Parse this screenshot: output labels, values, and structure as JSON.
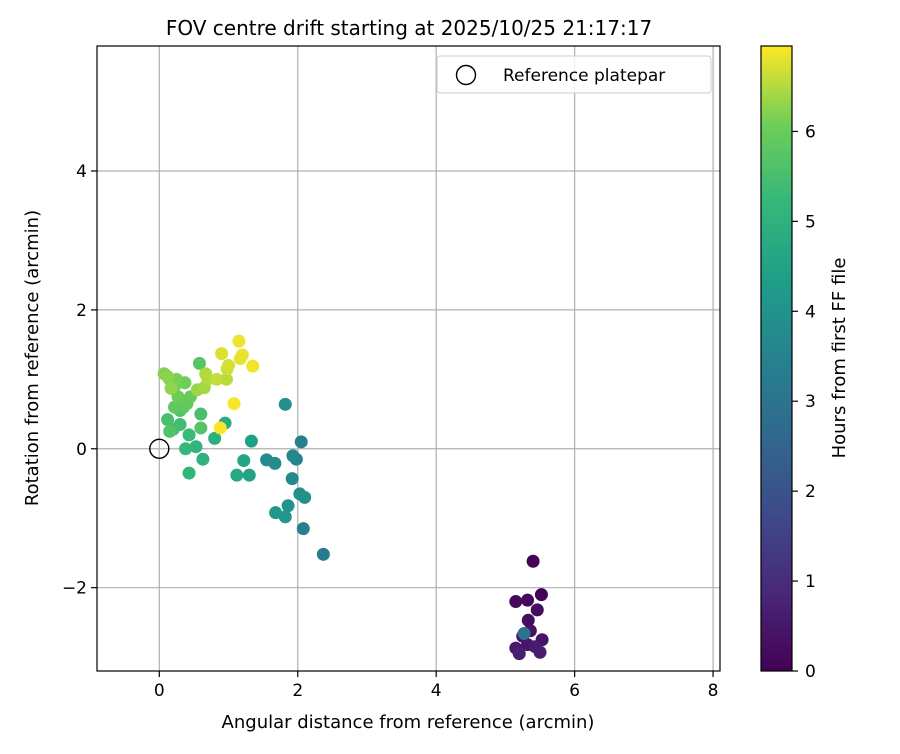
{
  "chart_data": {
    "type": "scatter",
    "title": "FOV centre drift starting at 2025/10/25 21:17:17",
    "xlabel": "Angular distance from reference (arcmin)",
    "ylabel": "Rotation from reference (arcmin)",
    "xlim": [
      -0.9,
      8.1
    ],
    "ylim": [
      -3.2,
      5.8
    ],
    "xticks": [
      0,
      2,
      4,
      6,
      8
    ],
    "yticks": [
      -2,
      0,
      2,
      4
    ],
    "grid": true,
    "legend": {
      "placement": "top-right",
      "entries": [
        "Reference platepar"
      ]
    },
    "reference_point": {
      "x": 0,
      "y": 0
    },
    "colorbar": {
      "label": "Hours from first FF file",
      "colormap": "viridis",
      "range": [
        0,
        6.95
      ],
      "ticks": [
        0,
        1,
        2,
        3,
        4,
        5,
        6
      ]
    },
    "points": [
      {
        "x": 5.4,
        "y": -1.62,
        "h": 0.05
      },
      {
        "x": 5.52,
        "y": -2.1,
        "h": 0.1
      },
      {
        "x": 5.32,
        "y": -2.18,
        "h": 0.15
      },
      {
        "x": 5.15,
        "y": -2.2,
        "h": 0.2
      },
      {
        "x": 5.46,
        "y": -2.32,
        "h": 0.25
      },
      {
        "x": 5.33,
        "y": -2.47,
        "h": 0.3
      },
      {
        "x": 5.36,
        "y": -2.62,
        "h": 0.35
      },
      {
        "x": 5.25,
        "y": -2.7,
        "h": 0.4
      },
      {
        "x": 5.53,
        "y": -2.75,
        "h": 0.45
      },
      {
        "x": 5.32,
        "y": -2.82,
        "h": 0.5
      },
      {
        "x": 5.15,
        "y": -2.87,
        "h": 0.55
      },
      {
        "x": 5.43,
        "y": -2.85,
        "h": 0.6
      },
      {
        "x": 5.5,
        "y": -2.93,
        "h": 0.65
      },
      {
        "x": 5.2,
        "y": -2.95,
        "h": 0.7
      },
      {
        "x": 5.27,
        "y": -2.66,
        "h": 3.0
      },
      {
        "x": 2.37,
        "y": -1.52,
        "h": 3.2
      },
      {
        "x": 2.08,
        "y": -1.15,
        "h": 3.35
      },
      {
        "x": 2.05,
        "y": 0.1,
        "h": 3.45
      },
      {
        "x": 1.98,
        "y": -0.15,
        "h": 3.55
      },
      {
        "x": 1.93,
        "y": -0.1,
        "h": 3.6
      },
      {
        "x": 1.92,
        "y": -0.43,
        "h": 3.7
      },
      {
        "x": 1.67,
        "y": -0.21,
        "h": 3.75
      },
      {
        "x": 1.55,
        "y": -0.16,
        "h": 3.8
      },
      {
        "x": 1.82,
        "y": 0.64,
        "h": 3.85
      },
      {
        "x": 2.1,
        "y": -0.7,
        "h": 3.9
      },
      {
        "x": 2.03,
        "y": -0.65,
        "h": 3.95
      },
      {
        "x": 1.86,
        "y": -0.82,
        "h": 4.0
      },
      {
        "x": 1.82,
        "y": -0.98,
        "h": 4.1
      },
      {
        "x": 1.68,
        "y": -0.92,
        "h": 4.2
      },
      {
        "x": 1.33,
        "y": 0.11,
        "h": 4.4
      },
      {
        "x": 1.3,
        "y": -0.38,
        "h": 4.5
      },
      {
        "x": 1.22,
        "y": -0.17,
        "h": 4.6
      },
      {
        "x": 1.12,
        "y": -0.38,
        "h": 4.7
      },
      {
        "x": 0.95,
        "y": 0.37,
        "h": 4.8
      },
      {
        "x": 0.8,
        "y": 0.15,
        "h": 4.9
      },
      {
        "x": 0.63,
        "y": -0.15,
        "h": 5.0
      },
      {
        "x": 0.53,
        "y": 0.03,
        "h": 5.1
      },
      {
        "x": 0.43,
        "y": -0.35,
        "h": 5.15
      },
      {
        "x": 0.38,
        "y": 0.0,
        "h": 5.2
      },
      {
        "x": 0.43,
        "y": 0.2,
        "h": 5.3
      },
      {
        "x": 0.3,
        "y": 0.35,
        "h": 5.4
      },
      {
        "x": 0.2,
        "y": 0.28,
        "h": 5.45
      },
      {
        "x": 0.12,
        "y": 0.42,
        "h": 5.5
      },
      {
        "x": 0.6,
        "y": 0.5,
        "h": 5.55
      },
      {
        "x": 0.3,
        "y": 0.55,
        "h": 5.6
      },
      {
        "x": 0.15,
        "y": 0.25,
        "h": 5.65
      },
      {
        "x": 0.6,
        "y": 0.3,
        "h": 5.7
      },
      {
        "x": 0.58,
        "y": 1.23,
        "h": 5.75
      },
      {
        "x": 0.35,
        "y": 0.6,
        "h": 5.8
      },
      {
        "x": 0.22,
        "y": 0.6,
        "h": 5.85
      },
      {
        "x": 0.4,
        "y": 0.65,
        "h": 5.9
      },
      {
        "x": 0.45,
        "y": 0.75,
        "h": 5.95
      },
      {
        "x": 0.27,
        "y": 0.75,
        "h": 6.0
      },
      {
        "x": 0.37,
        "y": 0.95,
        "h": 6.05
      },
      {
        "x": 0.22,
        "y": 0.9,
        "h": 6.1
      },
      {
        "x": 0.15,
        "y": 1.0,
        "h": 6.1
      },
      {
        "x": 0.25,
        "y": 1.0,
        "h": 6.15
      },
      {
        "x": 0.07,
        "y": 1.08,
        "h": 6.2
      },
      {
        "x": 0.12,
        "y": 1.04,
        "h": 6.25
      },
      {
        "x": 0.17,
        "y": 0.87,
        "h": 6.3
      },
      {
        "x": 0.55,
        "y": 0.85,
        "h": 6.35
      },
      {
        "x": 0.65,
        "y": 0.88,
        "h": 6.4
      },
      {
        "x": 0.67,
        "y": 1.08,
        "h": 6.45
      },
      {
        "x": 0.7,
        "y": 1.0,
        "h": 6.5
      },
      {
        "x": 0.97,
        "y": 1.0,
        "h": 6.55
      },
      {
        "x": 0.83,
        "y": 1.0,
        "h": 6.6
      },
      {
        "x": 0.98,
        "y": 1.15,
        "h": 6.65
      },
      {
        "x": 1.0,
        "y": 1.2,
        "h": 6.7
      },
      {
        "x": 0.9,
        "y": 1.37,
        "h": 6.75
      },
      {
        "x": 1.17,
        "y": 1.3,
        "h": 6.8
      },
      {
        "x": 1.2,
        "y": 1.35,
        "h": 6.82
      },
      {
        "x": 1.15,
        "y": 1.55,
        "h": 6.85
      },
      {
        "x": 1.35,
        "y": 1.19,
        "h": 6.88
      },
      {
        "x": 1.08,
        "y": 0.65,
        "h": 6.9
      },
      {
        "x": 0.88,
        "y": 0.3,
        "h": 6.93
      }
    ]
  }
}
